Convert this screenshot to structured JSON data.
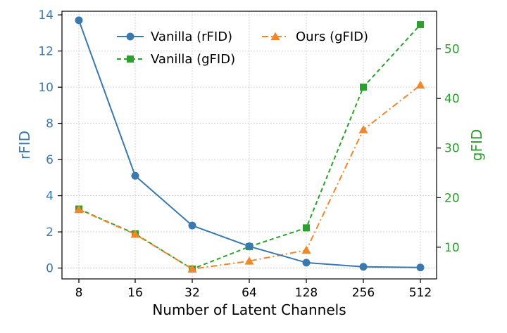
{
  "chart_data": {
    "type": "line",
    "xlabel": "Number of Latent Channels",
    "ylabel_left": "rFID",
    "ylabel_right": "gFID",
    "categories": [
      "8",
      "16",
      "32",
      "64",
      "128",
      "256",
      "512"
    ],
    "ylim_left": [
      -0.6,
      14.2
    ],
    "yticks_left": [
      "0",
      "2",
      "4",
      "6",
      "8",
      "10",
      "12",
      "14"
    ],
    "ylim_right": [
      3.6,
      57.6
    ],
    "yticks_right": [
      "10",
      "20",
      "30",
      "40",
      "50"
    ],
    "grid": true,
    "legend_position": "top-center",
    "colors": {
      "left_axis": "#3a78b0",
      "right_axis": "#2ca02c"
    },
    "series": [
      {
        "name": "Vanilla (rFID)",
        "axis": "left",
        "color": "#3a78b0",
        "linestyle": "solid",
        "marker": "circle",
        "values": [
          13.7,
          5.1,
          2.35,
          1.2,
          0.3,
          0.07,
          0.03
        ]
      },
      {
        "name": "Vanilla (gFID)",
        "axis": "right",
        "color": "#2ca02c",
        "linestyle": "dashed",
        "marker": "square",
        "values": [
          17.7,
          12.7,
          5.6,
          10.1,
          13.9,
          42.3,
          54.9
        ]
      },
      {
        "name": "Ours (gFID)",
        "axis": "right",
        "color": "#f0882b",
        "linestyle": "dashdot",
        "marker": "triangle",
        "values": [
          17.6,
          12.6,
          5.6,
          7.2,
          9.4,
          33.7,
          42.7
        ]
      }
    ]
  }
}
